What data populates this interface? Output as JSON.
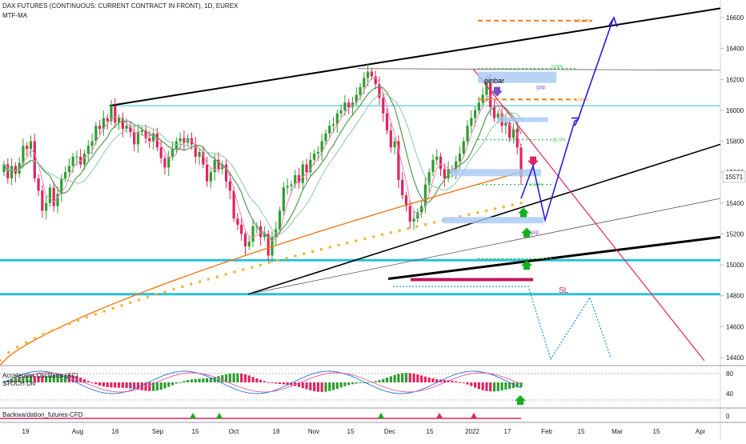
{
  "header": {
    "title": "DAX FUTURES (CONTINUOUS: CURRENT CONTRACT IN FRONT), 1D, EUREX",
    "indicator": "MTF-MA"
  },
  "colors": {
    "up": "#2e9e2e",
    "down": "#e0245e",
    "ema_short": "#ec87b5",
    "ma_mid": "#5fa05f",
    "ma_step": "#8dc7a9",
    "ma_long_step": "#f27a1a",
    "ma_long_dots": "#f5b83c",
    "channel": "#000000",
    "trend_red": "#e0245e",
    "cyan": "#29c0d8",
    "forecast": "#2b1bd6",
    "fib_orange": "#f0821e",
    "fib_green": "#2fbe48",
    "gap_box": "#a8c8f5",
    "sl": "#c0195e"
  },
  "annotations": {
    "pinbar": "pinbar",
    "gap1": "gap",
    "gap2": "gap",
    "sl": "SL",
    "fib_0": "0.00%",
    "fib_618": "61.80%",
    "fib_382": "38.20%",
    "fib_100_top": "100.00%",
    "fib_618_low": "61.80%"
  },
  "price_tag": "15571",
  "chart_data": {
    "type": "candlestick",
    "title": "DAX FUTURES (CONTINUOUS: CURRENT CONTRACT IN FRONT), 1D, EUREX",
    "y_ticks": [
      14400,
      14600,
      14800,
      15000,
      15200,
      15400,
      15600,
      15800,
      16000,
      16200,
      16400,
      16600
    ],
    "ylim": [
      14350,
      16720
    ],
    "x_ticks": [
      "19",
      "Aug",
      "16",
      "Sep",
      "15",
      "Oct",
      "18",
      "Nov",
      "15",
      "Dec",
      "15",
      "2022",
      "17",
      "Feb",
      "15",
      "Mar",
      "15",
      "Apr"
    ],
    "last_price": 15571,
    "horizontal_levels": [
      15030,
      14810
    ],
    "close_approx": [
      15650,
      15560,
      15640,
      15590,
      15660,
      15770,
      15750,
      15800,
      15560,
      15480,
      15350,
      15400,
      15500,
      15380,
      15460,
      15560,
      15600,
      15640,
      15700,
      15700,
      15650,
      15720,
      15770,
      15800,
      15900,
      15880,
      15950,
      15930,
      16030,
      15920,
      15950,
      15880,
      15900,
      15860,
      15780,
      15860,
      15870,
      15820,
      15800,
      15850,
      15760,
      15690,
      15630,
      15700,
      15750,
      15800,
      15820,
      15790,
      15820,
      15780,
      15700,
      15730,
      15650,
      15540,
      15600,
      15680,
      15620,
      15650,
      15540,
      15480,
      15300,
      15260,
      15200,
      15120,
      15150,
      15250,
      15250,
      15180,
      15200,
      15060,
      15180,
      15230,
      15350,
      15500,
      15510,
      15520,
      15580,
      15530,
      15650,
      15600,
      15680,
      15720,
      15730,
      15800,
      15850,
      15900,
      15910,
      15980,
      16000,
      16050,
      16020,
      16050,
      16100,
      16150,
      16210,
      16250,
      16220,
      16170,
      16080,
      15980,
      15870,
      15760,
      15800,
      15550,
      15450,
      15380,
      15280,
      15300,
      15340,
      15380,
      15520,
      15600,
      15680,
      15700,
      15620,
      15560,
      15620,
      15600,
      15670,
      15720,
      15800,
      15900,
      15950,
      16000,
      16050,
      16100,
      16200,
      16020,
      15950,
      15980,
      15900,
      15920,
      15820,
      15880,
      15760,
      15571
    ],
    "forecast_path": [
      [
        15420,
        "Jan 18"
      ],
      [
        15640,
        "Jan 20"
      ],
      [
        15290,
        "Jan 26"
      ],
      [
        15930,
        "Feb 08"
      ],
      [
        16010,
        "Feb 14"
      ],
      [
        16580,
        "Feb 25"
      ]
    ],
    "bearish_path_dotted": [
      14860,
      14860,
      14830,
      14400,
      14780,
      14390
    ],
    "sub_panels": [
      {
        "name": "Accelerator Oscillator (AC)",
        "ticks": [
          "80",
          "40"
        ]
      },
      {
        "name": "STOCH Div",
        "ticks": []
      },
      {
        "name": "Backwardation_futures-CFD",
        "ticks": [
          "0"
        ]
      }
    ]
  }
}
